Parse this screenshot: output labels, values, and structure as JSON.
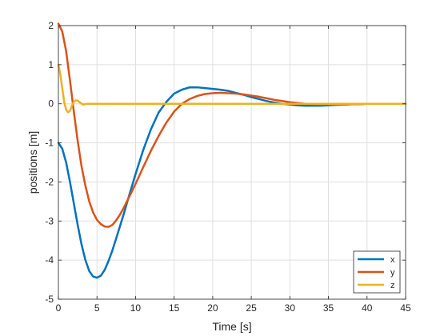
{
  "chart_data": {
    "type": "line",
    "title": "",
    "xlabel": "Time [s]",
    "ylabel": "positions [m]",
    "xlim": [
      0,
      45
    ],
    "ylim": [
      -5,
      2
    ],
    "xticks": [
      0,
      5,
      10,
      15,
      20,
      25,
      30,
      35,
      40,
      45
    ],
    "yticks": [
      -5,
      -4,
      -3,
      -2,
      -1,
      0,
      1,
      2
    ],
    "grid": true,
    "legend": {
      "placement": "bottom-right"
    },
    "series": [
      {
        "name": "x",
        "color": "#0072BD",
        "x": [
          0,
          0.5,
          1,
          1.5,
          2,
          2.5,
          3,
          3.5,
          4,
          4.5,
          5,
          5.5,
          6,
          6.5,
          7,
          7.5,
          8,
          8.5,
          9,
          9.5,
          10,
          11,
          12,
          13,
          14,
          15,
          16,
          17,
          18,
          19,
          20,
          21,
          22,
          23,
          24,
          25,
          26,
          27,
          28,
          29,
          30,
          31,
          32,
          33,
          34,
          35,
          36,
          37,
          38,
          39,
          40,
          41,
          42,
          43,
          44,
          45
        ],
        "y": [
          -1.0,
          -1.15,
          -1.5,
          -2.0,
          -2.55,
          -3.1,
          -3.6,
          -4.0,
          -4.28,
          -4.42,
          -4.45,
          -4.4,
          -4.25,
          -4.02,
          -3.75,
          -3.44,
          -3.12,
          -2.8,
          -2.46,
          -2.13,
          -1.8,
          -1.18,
          -0.65,
          -0.22,
          0.05,
          0.26,
          0.36,
          0.42,
          0.42,
          0.4,
          0.38,
          0.36,
          0.33,
          0.28,
          0.23,
          0.17,
          0.12,
          0.07,
          0.03,
          0.0,
          -0.02,
          -0.04,
          -0.05,
          -0.05,
          -0.05,
          -0.04,
          -0.03,
          -0.02,
          -0.01,
          -0.005,
          0.0,
          0.0,
          0.0,
          0.0,
          0.0,
          0.0
        ]
      },
      {
        "name": "y",
        "color": "#D95319",
        "x": [
          0,
          0.5,
          1,
          1.5,
          2,
          2.5,
          3,
          3.5,
          4,
          4.5,
          5,
          5.5,
          6,
          6.5,
          7,
          7.5,
          8,
          8.5,
          9,
          9.5,
          10,
          11,
          12,
          13,
          14,
          15,
          16,
          17,
          18,
          19,
          20,
          21,
          22,
          23,
          24,
          25,
          26,
          27,
          28,
          29,
          30,
          31,
          32,
          33,
          34,
          35,
          36,
          37,
          38,
          39,
          40,
          41,
          42,
          43,
          44,
          45
        ],
        "y": [
          2.05,
          1.85,
          1.35,
          0.6,
          -0.2,
          -0.95,
          -1.6,
          -2.1,
          -2.5,
          -2.78,
          -2.97,
          -3.08,
          -3.14,
          -3.15,
          -3.1,
          -2.98,
          -2.83,
          -2.65,
          -2.45,
          -2.25,
          -2.05,
          -1.62,
          -1.2,
          -0.82,
          -0.48,
          -0.2,
          0.0,
          0.12,
          0.2,
          0.25,
          0.27,
          0.28,
          0.27,
          0.26,
          0.24,
          0.21,
          0.18,
          0.14,
          0.1,
          0.07,
          0.04,
          0.02,
          0.0,
          -0.01,
          -0.02,
          -0.02,
          -0.02,
          -0.02,
          -0.01,
          -0.01,
          0.0,
          0.0,
          0.0,
          0.0,
          0.0,
          0.0
        ]
      },
      {
        "name": "z",
        "color": "#EDB120",
        "x": [
          0,
          0.25,
          0.5,
          0.75,
          1,
          1.25,
          1.5,
          1.75,
          2,
          2.25,
          2.5,
          2.75,
          3,
          3.25,
          3.5,
          3.75,
          4,
          4.5,
          5,
          6,
          8,
          10,
          15,
          20,
          25,
          30,
          35,
          40,
          45
        ],
        "y": [
          1.0,
          0.75,
          0.4,
          0.05,
          -0.15,
          -0.22,
          -0.18,
          -0.05,
          0.05,
          0.09,
          0.08,
          0.04,
          0.0,
          -0.02,
          -0.01,
          0.0,
          0.0,
          0.0,
          0.0,
          0.0,
          0.0,
          0.0,
          0.0,
          0.0,
          0.0,
          0.0,
          0.0,
          0.0,
          0.0
        ]
      }
    ]
  }
}
